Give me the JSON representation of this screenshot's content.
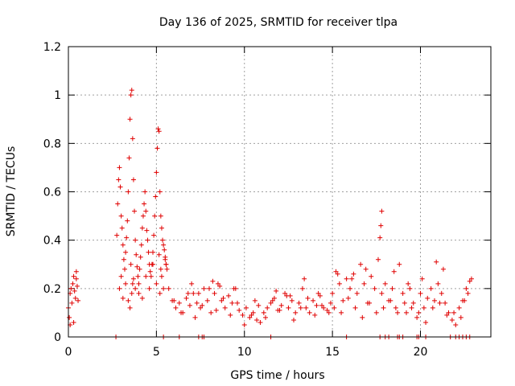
{
  "chart_data": {
    "type": "scatter",
    "title": "Day 136 of 2025, SRMTID for receiver tlpa",
    "xlabel": "GPS time / hours",
    "ylabel": "SRMTID / TECUs",
    "xlim": [
      0,
      24
    ],
    "ylim": [
      0,
      1.2
    ],
    "xticks": [
      0,
      5,
      10,
      15,
      20
    ],
    "xtick_labels": [
      "0",
      "5",
      "10",
      "15",
      "20"
    ],
    "yticks": [
      0,
      0.2,
      0.4,
      0.6,
      0.8,
      1.0,
      1.2
    ],
    "ytick_labels": [
      "0",
      "0.2",
      "0.4",
      "0.6",
      "0.8",
      "1",
      "1.2"
    ],
    "grid": true,
    "marker": "+",
    "color": "#e00000",
    "series": [
      {
        "name": "SRMTID",
        "x": [
          0.0,
          0.05,
          0.1,
          0.15,
          0.2,
          0.25,
          0.3,
          0.35,
          0.4,
          0.45,
          0.5,
          0.55,
          0.1,
          0.3,
          0.45,
          2.75,
          2.8,
          2.85,
          2.9,
          2.95,
          3.0,
          3.05,
          3.1,
          3.15,
          3.2,
          3.25,
          3.3,
          3.35,
          3.4,
          3.45,
          3.5,
          3.55,
          3.6,
          3.65,
          3.7,
          3.75,
          3.8,
          3.85,
          3.9,
          3.95,
          4.0,
          4.05,
          4.1,
          4.15,
          4.2,
          4.25,
          4.3,
          4.35,
          4.4,
          4.45,
          4.5,
          4.55,
          4.6,
          4.65,
          4.7,
          4.75,
          4.8,
          4.85,
          4.9,
          4.95,
          5.0,
          5.05,
          5.1,
          5.15,
          5.2,
          5.25,
          5.3,
          5.35,
          5.4,
          5.45,
          5.5,
          5.55,
          5.6,
          2.9,
          3.0,
          3.1,
          3.25,
          3.4,
          3.5,
          3.55,
          3.6,
          3.65,
          3.7,
          3.8,
          4.0,
          4.2,
          4.4,
          4.6,
          4.8,
          5.0,
          5.15,
          5.2,
          5.25,
          5.3,
          5.4,
          5.5,
          5.55,
          5.7,
          5.9,
          6.1,
          6.3,
          6.5,
          6.7,
          6.9,
          7.1,
          7.3,
          7.5,
          7.7,
          7.9,
          8.1,
          8.3,
          8.5,
          8.7,
          8.9,
          9.1,
          9.3,
          9.5,
          9.7,
          9.9,
          10.1,
          10.3,
          10.5,
          10.7,
          10.9,
          11.1,
          11.3,
          11.5,
          11.7,
          11.9,
          12.1,
          12.3,
          12.5,
          12.7,
          12.9,
          13.1,
          13.3,
          13.5,
          13.7,
          13.9,
          14.1,
          14.3,
          14.5,
          14.7,
          14.9,
          6.0,
          6.4,
          6.8,
          7.2,
          7.6,
          8.0,
          8.4,
          8.8,
          9.2,
          9.6,
          10.0,
          10.4,
          10.8,
          11.2,
          11.6,
          12.0,
          12.4,
          12.8,
          13.2,
          13.6,
          14.0,
          14.4,
          14.8,
          7.0,
          7.4,
          8.2,
          8.6,
          9.4,
          10.6,
          11.8,
          12.6,
          13.4,
          14.2,
          15.0,
          15.2,
          15.4,
          15.6,
          15.8,
          16.0,
          16.2,
          16.4,
          16.6,
          16.8,
          17.0,
          17.2,
          17.4,
          17.6,
          17.8,
          18.0,
          18.2,
          18.4,
          18.6,
          18.8,
          19.0,
          19.2,
          19.4,
          19.6,
          19.8,
          20.0,
          20.2,
          20.4,
          20.6,
          20.8,
          21.0,
          21.2,
          21.4,
          21.6,
          21.8,
          22.0,
          22.2,
          22.4,
          22.6,
          22.8,
          15.1,
          15.5,
          15.9,
          16.3,
          16.7,
          17.1,
          17.5,
          17.9,
          18.3,
          18.7,
          19.1,
          19.5,
          19.9,
          20.3,
          20.7,
          21.1,
          21.5,
          21.9,
          22.3,
          22.7,
          15.3,
          16.1,
          16.9,
          17.7,
          17.8,
          17.75,
          18.5,
          19.3,
          20.1,
          20.9,
          21.3,
          22.5,
          22.9,
          2.7,
          5.4,
          6.3,
          7.4,
          7.6,
          7.7,
          11.5,
          15.8,
          17.7,
          18.0,
          18.2,
          18.7,
          18.8,
          19.0,
          19.8,
          19.9,
          20.3,
          21.7,
          22.0,
          22.2,
          22.4,
          22.6,
          22.8
        ],
        "y": [
          0.12,
          0.08,
          0.18,
          0.2,
          0.14,
          0.22,
          0.25,
          0.19,
          0.16,
          0.24,
          0.21,
          0.15,
          0.05,
          0.06,
          0.27,
          0.42,
          0.55,
          0.65,
          0.7,
          0.62,
          0.5,
          0.45,
          0.38,
          0.32,
          0.28,
          0.35,
          0.41,
          0.48,
          0.6,
          0.74,
          0.9,
          1.0,
          1.02,
          0.82,
          0.65,
          0.52,
          0.4,
          0.34,
          0.29,
          0.25,
          0.22,
          0.28,
          0.33,
          0.38,
          0.45,
          0.5,
          0.55,
          0.6,
          0.52,
          0.44,
          0.4,
          0.35,
          0.3,
          0.27,
          0.25,
          0.3,
          0.35,
          0.42,
          0.5,
          0.58,
          0.68,
          0.78,
          0.86,
          0.85,
          0.6,
          0.5,
          0.45,
          0.4,
          0.38,
          0.36,
          0.33,
          0.3,
          0.28,
          0.2,
          0.25,
          0.16,
          0.22,
          0.15,
          0.12,
          0.3,
          0.18,
          0.22,
          0.24,
          0.2,
          0.18,
          0.16,
          0.25,
          0.2,
          0.3,
          0.22,
          0.34,
          0.18,
          0.28,
          0.25,
          0.2,
          0.32,
          0.3,
          0.2,
          0.15,
          0.12,
          0.14,
          0.1,
          0.16,
          0.13,
          0.18,
          0.14,
          0.12,
          0.2,
          0.15,
          0.1,
          0.18,
          0.22,
          0.15,
          0.12,
          0.17,
          0.14,
          0.2,
          0.11,
          0.09,
          0.12,
          0.08,
          0.1,
          0.07,
          0.06,
          0.1,
          0.12,
          0.14,
          0.16,
          0.11,
          0.13,
          0.18,
          0.12,
          0.15,
          0.1,
          0.14,
          0.2,
          0.12,
          0.1,
          0.15,
          0.13,
          0.17,
          0.12,
          0.11,
          0.14,
          0.15,
          0.1,
          0.18,
          0.08,
          0.13,
          0.2,
          0.11,
          0.16,
          0.09,
          0.14,
          0.05,
          0.09,
          0.13,
          0.08,
          0.15,
          0.11,
          0.17,
          0.07,
          0.12,
          0.16,
          0.09,
          0.13,
          0.1,
          0.22,
          0.18,
          0.23,
          0.21,
          0.2,
          0.15,
          0.19,
          0.17,
          0.24,
          0.18,
          0.18,
          0.27,
          0.22,
          0.15,
          0.24,
          0.2,
          0.26,
          0.18,
          0.3,
          0.22,
          0.14,
          0.25,
          0.2,
          0.32,
          0.18,
          0.22,
          0.15,
          0.2,
          0.12,
          0.3,
          0.18,
          0.1,
          0.2,
          0.14,
          0.08,
          0.18,
          0.12,
          0.16,
          0.2,
          0.15,
          0.22,
          0.18,
          0.14,
          0.1,
          0.07,
          0.05,
          0.12,
          0.15,
          0.2,
          0.23,
          0.12,
          0.1,
          0.16,
          0.12,
          0.08,
          0.14,
          0.1,
          0.12,
          0.15,
          0.1,
          0.14,
          0.12,
          0.1,
          0.06,
          0.12,
          0.14,
          0.09,
          0.1,
          0.08,
          0.18,
          0.26,
          0.24,
          0.28,
          0.41,
          0.52,
          0.46,
          0.27,
          0.22,
          0.24,
          0.31,
          0.28,
          0.15,
          0.24,
          0.0,
          0.0,
          0.0,
          0.0,
          0.0,
          0.0,
          0.0,
          0.0,
          0.0,
          0.0,
          0.0,
          0.0,
          0.0,
          0.0,
          0.0,
          0.0,
          0.0,
          0.0,
          0.0,
          0.0,
          0.0,
          0.0,
          0.0
        ]
      }
    ]
  }
}
